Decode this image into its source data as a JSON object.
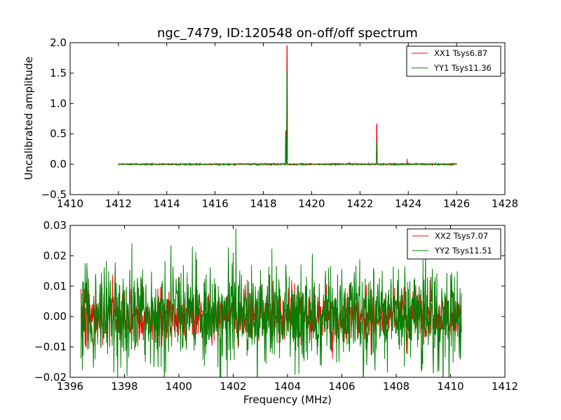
{
  "chart_data": [
    {
      "type": "line",
      "title": "ngc_7479, ID:120548 on-off/off spectrum",
      "xlabel": "",
      "ylabel": "Uncalibrated amplitude",
      "xlim": [
        1410,
        1428
      ],
      "ylim": [
        -0.5,
        2.0
      ],
      "xticks": [
        "1410",
        "1412",
        "1414",
        "1416",
        "1418",
        "1420",
        "1422",
        "1424",
        "1426",
        "1428"
      ],
      "yticks": [
        "−0.5",
        "0.0",
        "0.5",
        "1.0",
        "1.5",
        "2.0"
      ],
      "grid": false,
      "legend_position": "top-right",
      "x_range": [
        1412.0,
        1426.0
      ],
      "series": [
        {
          "name": "XX1 Tsys6.87",
          "color": "#ff0000",
          "noise": 0.006,
          "peaks": [
            [
              1418.98,
              1.95
            ],
            [
              1418.93,
              0.55
            ],
            [
              1421.55,
              0.03
            ],
            [
              1422.7,
              0.66
            ],
            [
              1423.95,
              0.09
            ]
          ]
        },
        {
          "name": "YY1 Tsys11.36",
          "color": "#008000",
          "noise": 0.006,
          "peaks": [
            [
              1418.98,
              1.53
            ],
            [
              1418.93,
              0.45
            ],
            [
              1422.7,
              0.36
            ],
            [
              1423.95,
              0.02
            ]
          ]
        }
      ]
    },
    {
      "type": "line",
      "title": "",
      "xlabel": "Frequency (MHz)",
      "ylabel": "",
      "xlim": [
        1396,
        1412
      ],
      "ylim": [
        -0.02,
        0.03
      ],
      "xticks": [
        "1396",
        "1398",
        "1400",
        "1402",
        "1404",
        "1406",
        "1408",
        "1410",
        "1412"
      ],
      "yticks": [
        "−0.02",
        "−0.01",
        "0.00",
        "0.01",
        "0.02",
        "0.03"
      ],
      "grid": false,
      "legend_position": "top-right",
      "x_range": [
        1396.4,
        1410.4
      ],
      "series": [
        {
          "name": "XX2 Tsys7.07",
          "color": "#ff0000",
          "noise": 0.0045,
          "peaks": []
        },
        {
          "name": "YY2 Tsys11.51",
          "color": "#008000",
          "noise": 0.0085,
          "peaks": [
            [
              1402.1,
              0.029
            ]
          ]
        }
      ]
    }
  ]
}
